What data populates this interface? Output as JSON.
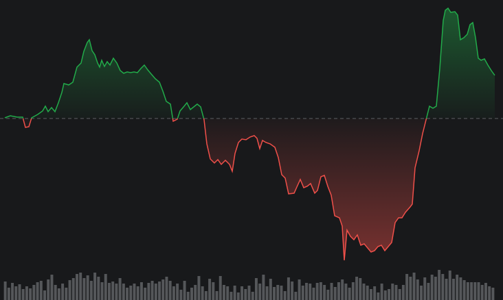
{
  "chart_data": [
    {
      "type": "baseline",
      "x": [
        7,
        15,
        25,
        33,
        37,
        42,
        46,
        55,
        62,
        66,
        70,
        75,
        80,
        85,
        90,
        93,
        100,
        106,
        112,
        118,
        122,
        127,
        130,
        134,
        138,
        142,
        145,
        148,
        152,
        156,
        160,
        165,
        170,
        175,
        180,
        185,
        190,
        195,
        200,
        205,
        210,
        215,
        220,
        226,
        232,
        237,
        242,
        248,
        252,
        258,
        262,
        268,
        272,
        277,
        282,
        287,
        292,
        297,
        301,
        306,
        312,
        317,
        322,
        328,
        334,
        338,
        342,
        347,
        352,
        358,
        364,
        370,
        374,
        378,
        382,
        387,
        393,
        400,
        405,
        410,
        415,
        420,
        428,
        432,
        437,
        442,
        447,
        452,
        458,
        462,
        467,
        472,
        477,
        482,
        487,
        494,
        498,
        501,
        505,
        510,
        515,
        520,
        525,
        530,
        535,
        540,
        545,
        550,
        555,
        560,
        565,
        570,
        575,
        580,
        585,
        590,
        597,
        600,
        604,
        610,
        615,
        620,
        625,
        630,
        635,
        640,
        645,
        648,
        652,
        656,
        662,
        666,
        670,
        675,
        680,
        684,
        688,
        692,
        696,
        700,
        705,
        710,
        715,
        720
      ],
      "values": [
        1,
        4,
        2,
        2,
        -13,
        -12,
        1,
        6,
        11,
        18,
        10,
        16,
        10,
        23,
        38,
        51,
        49,
        53,
        75,
        81,
        98,
        111,
        115,
        99,
        93,
        81,
        75,
        85,
        76,
        83,
        78,
        88,
        81,
        70,
        66,
        68,
        67,
        68,
        67,
        73,
        78,
        71,
        65,
        58,
        53,
        40,
        25,
        21,
        -4,
        -1,
        11,
        18,
        23,
        13,
        17,
        21,
        17,
        -2,
        -37,
        -59,
        -65,
        -60,
        -67,
        -61,
        -67,
        -77,
        -51,
        -35,
        -30,
        -31,
        -27,
        -25,
        -29,
        -44,
        -32,
        -35,
        -37,
        -42,
        -57,
        -82,
        -87,
        -110,
        -109,
        -100,
        -89,
        -101,
        -99,
        -95,
        -109,
        -105,
        -85,
        -83,
        -99,
        -112,
        -142,
        -145,
        -157,
        -207,
        -163,
        -172,
        -177,
        -170,
        -185,
        -183,
        -189,
        -195,
        -193,
        -187,
        -185,
        -193,
        -187,
        -181,
        -152,
        -145,
        -145,
        -137,
        -129,
        -125,
        -72,
        -47,
        -22,
        -2,
        18,
        15,
        18,
        73,
        143,
        158,
        161,
        155,
        156,
        151,
        115,
        118,
        123,
        137,
        140,
        118,
        88,
        85,
        87,
        78,
        70,
        63
      ],
      "xlim": [
        0,
        732
      ],
      "ylim": [
        -265,
        173
      ],
      "baseline": 0,
      "up_color": "#22ab4a",
      "down_color": "#f0504a",
      "baseline_color": "#5d5f63"
    },
    {
      "type": "bar",
      "values": [
        27,
        18,
        25,
        20,
        23,
        16,
        20,
        17,
        22,
        26,
        28,
        14,
        30,
        37,
        22,
        17,
        24,
        18,
        29,
        32,
        38,
        40,
        32,
        36,
        28,
        40,
        34,
        26,
        38,
        25,
        27,
        24,
        32,
        24,
        18,
        21,
        24,
        20,
        26,
        18,
        25,
        28,
        24,
        27,
        30,
        34,
        28,
        20,
        24,
        15,
        28,
        12,
        18,
        22,
        35,
        20,
        13,
        31,
        26,
        13,
        35,
        22,
        20,
        12,
        21,
        11,
        20,
        16,
        21,
        12,
        32,
        24,
        37,
        20,
        31,
        19,
        22,
        21,
        13,
        33,
        27,
        12,
        30,
        21,
        25,
        24,
        18,
        25,
        26,
        22,
        15,
        25,
        19,
        26,
        30,
        24,
        18,
        26,
        34,
        32,
        24,
        21,
        16,
        20,
        11,
        24,
        14,
        16,
        24,
        22,
        16,
        22,
        38,
        34,
        40,
        30,
        21,
        33,
        25,
        37,
        34,
        44,
        38,
        31,
        43,
        31,
        37,
        33,
        29,
        26,
        26,
        26,
        26,
        22,
        25,
        20,
        18
      ],
      "ylim": [
        0,
        60
      ],
      "color": "#55575a"
    }
  ]
}
